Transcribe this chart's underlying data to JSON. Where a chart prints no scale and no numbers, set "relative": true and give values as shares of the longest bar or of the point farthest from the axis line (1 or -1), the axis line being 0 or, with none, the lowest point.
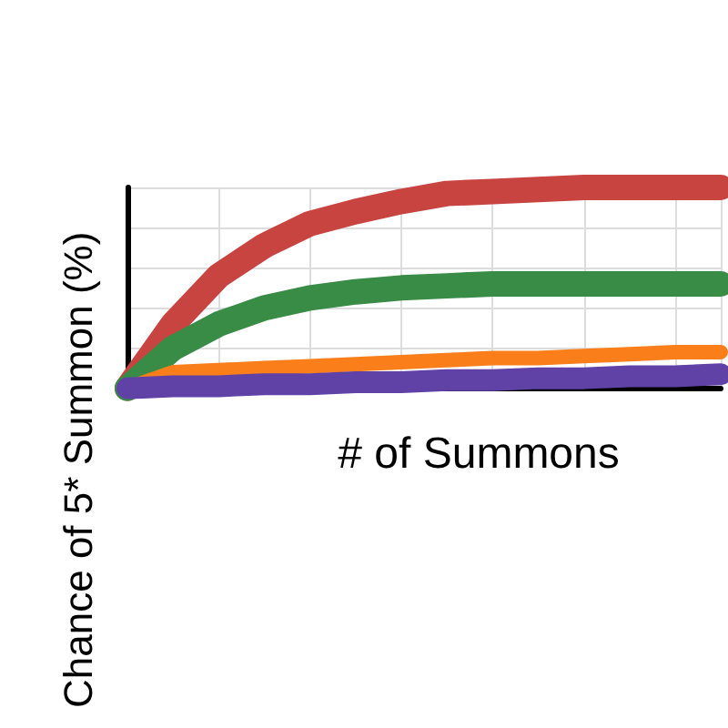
{
  "chart_data": {
    "type": "line",
    "relative": true,
    "xlabel": "# of Summons",
    "ylabel": "Chance of 5* Summon (%)",
    "categories": [
      null,
      null,
      null,
      null,
      null,
      null,
      null,
      null,
      null,
      null,
      null,
      null,
      null,
      null
    ],
    "series": [
      {
        "color": "#c74440",
        "values": [
          0,
          0.32,
          0.56,
          0.71,
          0.82,
          0.88,
          0.93,
          0.97,
          0.98,
          0.99,
          1,
          1,
          1,
          1
        ]
      },
      {
        "color": "#388c46",
        "values": [
          0,
          0.2,
          0.32,
          0.4,
          0.45,
          0.48,
          0.5,
          0.51,
          0.52,
          0.52,
          0.52,
          0.52,
          0.52,
          0.52
        ]
      },
      {
        "color": "#fa7e19",
        "values": [
          0,
          0.08,
          0.09,
          0.1,
          0.11,
          0.12,
          0.13,
          0.14,
          0.15,
          0.15,
          0.16,
          0.17,
          0.18,
          0.18
        ]
      },
      {
        "color": "#6042a6",
        "values": [
          0,
          0.01,
          0.01,
          0.02,
          0.02,
          0.03,
          0.03,
          0.04,
          0.04,
          0.05,
          0.05,
          0.06,
          0.06,
          0.07
        ]
      }
    ],
    "grid": true,
    "marker": "none",
    "line_style": "solid"
  }
}
